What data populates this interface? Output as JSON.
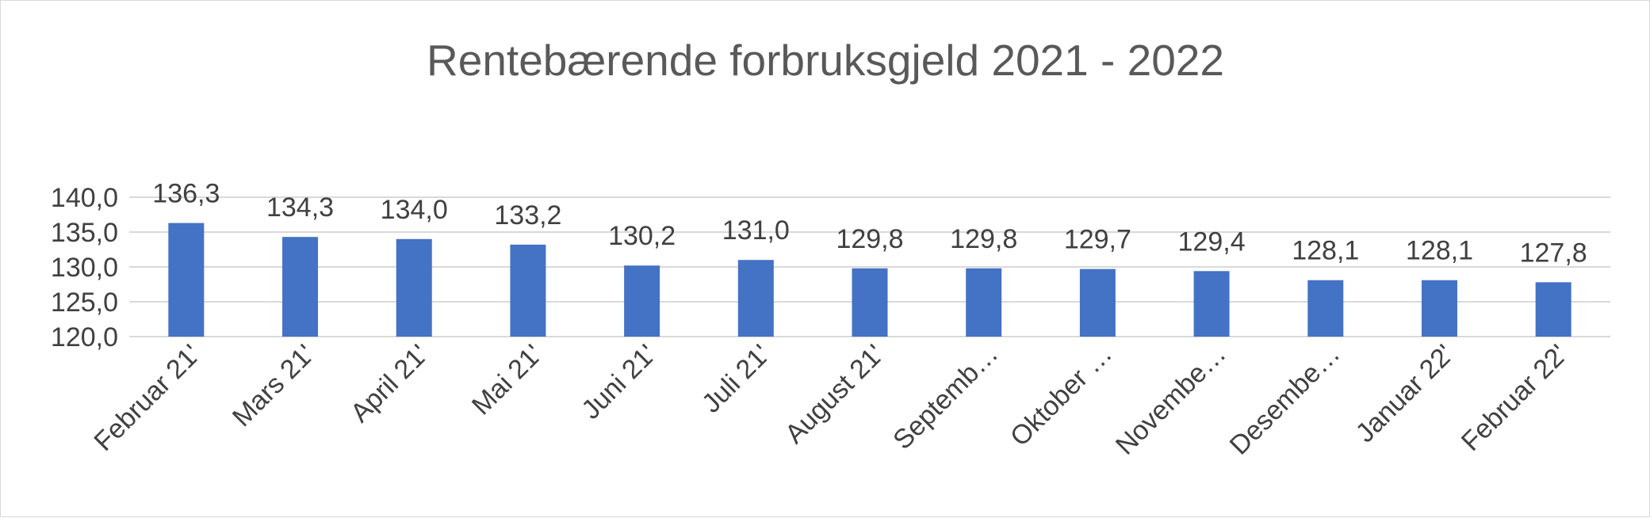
{
  "chart_data": {
    "type": "bar",
    "title": "Rentebærende forbruksgjeld 2021 - 2022",
    "xlabel": "",
    "ylabel": "",
    "categories": [
      "Februar 21'",
      "Mars 21'",
      "April 21'",
      "Mai 21'",
      "Juni 21'",
      "Juli 21'",
      "August 21'",
      "Septemb…",
      "Oktober …",
      "Novembe…",
      "Desembe…",
      "Januar 22'",
      "Februar 22'"
    ],
    "values": [
      136.3,
      134.3,
      134.0,
      133.2,
      130.2,
      131.0,
      129.8,
      129.8,
      129.7,
      129.4,
      128.1,
      128.1,
      127.8
    ],
    "data_labels": [
      "136,3",
      "134,3",
      "134,0",
      "133,2",
      "130,2",
      "131,0",
      "129,8",
      "129,8",
      "129,7",
      "129,4",
      "128,1",
      "128,1",
      "127,8"
    ],
    "ylim": [
      120,
      140
    ],
    "yticks": [
      120,
      125,
      130,
      135,
      140
    ],
    "ytick_labels": [
      "120,0",
      "125,0",
      "130,0",
      "135,0",
      "140,0"
    ],
    "grid": true,
    "legend": "none",
    "bar_color": "#4472c4",
    "grid_color": "#d9d9d9"
  }
}
